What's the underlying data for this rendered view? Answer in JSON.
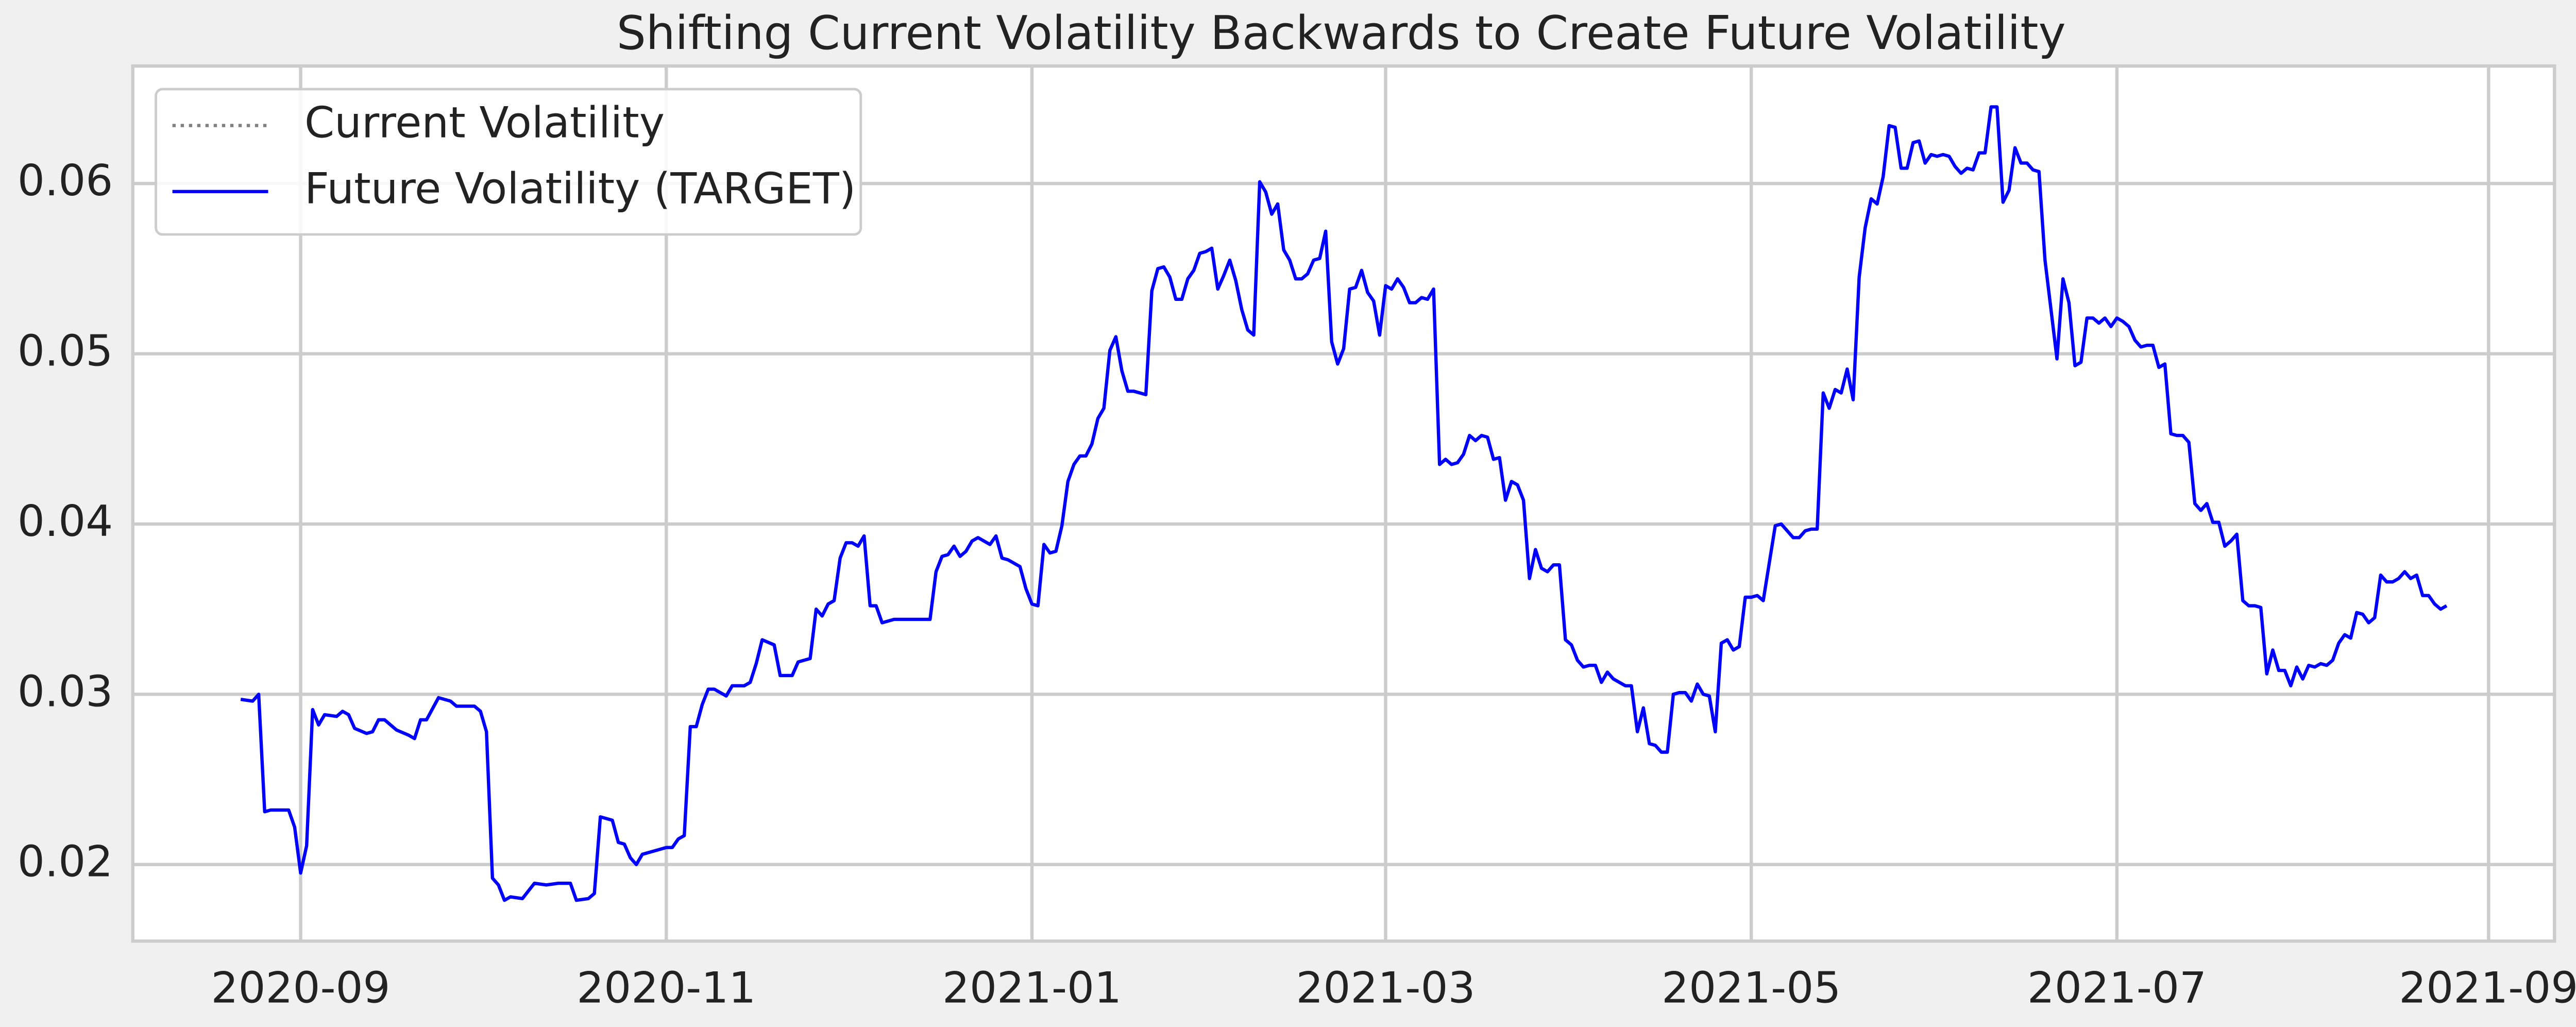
{
  "chart_data": {
    "type": "line",
    "title": "Shifting Current Volatility Backwards to Create Future Volatility",
    "series": [
      {
        "name": "Current Volatility",
        "color": "gray",
        "linestyle": "dotted",
        "x": [],
        "values": []
      },
      {
        "name": "Future Volatility (TARGET)",
        "color": "blue",
        "linestyle": "solid",
        "x": [
          "2020-08-22",
          "2020-08-24",
          "2020-08-25",
          "2020-08-26",
          "2020-08-27",
          "2020-08-30",
          "2020-08-31",
          "2020-09-01",
          "2020-09-02",
          "2020-09-03",
          "2020-09-04",
          "2020-09-05",
          "2020-09-07",
          "2020-09-08",
          "2020-09-09",
          "2020-09-10",
          "2020-09-12",
          "2020-09-13",
          "2020-09-14",
          "2020-09-15",
          "2020-09-17",
          "2020-09-19",
          "2020-09-20",
          "2020-09-21",
          "2020-09-22",
          "2020-09-24",
          "2020-09-26",
          "2020-09-27",
          "2020-09-30",
          "2020-10-01",
          "2020-10-02",
          "2020-10-03",
          "2020-10-04",
          "2020-10-05",
          "2020-10-06",
          "2020-10-08",
          "2020-10-10",
          "2020-10-12",
          "2020-10-14",
          "2020-10-16",
          "2020-10-17",
          "2020-10-19",
          "2020-10-20",
          "2020-10-21",
          "2020-10-23",
          "2020-10-24",
          "2020-10-25",
          "2020-10-26",
          "2020-10-27",
          "2020-10-28",
          "2020-10-30",
          "2020-11-01",
          "2020-11-02",
          "2020-11-03",
          "2020-11-04",
          "2020-11-05",
          "2020-11-06",
          "2020-11-07",
          "2020-11-08",
          "2020-11-09",
          "2020-11-11",
          "2020-11-12",
          "2020-11-14",
          "2020-11-15",
          "2020-11-16",
          "2020-11-17",
          "2020-11-19",
          "2020-11-20",
          "2020-11-22",
          "2020-11-23",
          "2020-11-25",
          "2020-11-26",
          "2020-11-27",
          "2020-11-28",
          "2020-11-29",
          "2020-11-30",
          "2020-12-01",
          "2020-12-02",
          "2020-12-03",
          "2020-12-04",
          "2020-12-05",
          "2020-12-06",
          "2020-12-07",
          "2020-12-09",
          "2020-12-11",
          "2020-12-13",
          "2020-12-15",
          "2020-12-16",
          "2020-12-17",
          "2020-12-18",
          "2020-12-19",
          "2020-12-20",
          "2020-12-21",
          "2020-12-22",
          "2020-12-23",
          "2020-12-25",
          "2020-12-26",
          "2020-12-27",
          "2020-12-28",
          "2020-12-30",
          "2020-12-31",
          "2021-01-01",
          "2021-01-02",
          "2021-01-03",
          "2021-01-04",
          "2021-01-05",
          "2021-01-06",
          "2021-01-07",
          "2021-01-08",
          "2021-01-09",
          "2021-01-10",
          "2021-01-11",
          "2021-01-12",
          "2021-01-13",
          "2021-01-14",
          "2021-01-15",
          "2021-01-16",
          "2021-01-17",
          "2021-01-18",
          "2021-01-20",
          "2021-01-21",
          "2021-01-22",
          "2021-01-23",
          "2021-01-24",
          "2021-01-25",
          "2021-01-26",
          "2021-01-27",
          "2021-01-28",
          "2021-01-29",
          "2021-01-30",
          "2021-01-31",
          "2021-02-01",
          "2021-02-02",
          "2021-02-03",
          "2021-02-04",
          "2021-02-05",
          "2021-02-06",
          "2021-02-07",
          "2021-02-08",
          "2021-02-09",
          "2021-02-10",
          "2021-02-11",
          "2021-02-12",
          "2021-02-13",
          "2021-02-14",
          "2021-02-15",
          "2021-02-16",
          "2021-02-17",
          "2021-02-18",
          "2021-02-19",
          "2021-02-20",
          "2021-02-21",
          "2021-02-22",
          "2021-02-23",
          "2021-02-24",
          "2021-02-25",
          "2021-02-26",
          "2021-02-27",
          "2021-02-28",
          "2021-03-01",
          "2021-03-02",
          "2021-03-03",
          "2021-03-04",
          "2021-03-05",
          "2021-03-06",
          "2021-03-07",
          "2021-03-08",
          "2021-03-09",
          "2021-03-10",
          "2021-03-11",
          "2021-03-12",
          "2021-03-13",
          "2021-03-14",
          "2021-03-15",
          "2021-03-16",
          "2021-03-17",
          "2021-03-18",
          "2021-03-19",
          "2021-03-20",
          "2021-03-21",
          "2021-03-22",
          "2021-03-23",
          "2021-03-24",
          "2021-03-25",
          "2021-03-26",
          "2021-03-27",
          "2021-03-28",
          "2021-03-29",
          "2021-03-30",
          "2021-03-31",
          "2021-04-01",
          "2021-04-02",
          "2021-04-03",
          "2021-04-04",
          "2021-04-05",
          "2021-04-06",
          "2021-04-07",
          "2021-04-08",
          "2021-04-09",
          "2021-04-10",
          "2021-04-11",
          "2021-04-12",
          "2021-04-13",
          "2021-04-14",
          "2021-04-15",
          "2021-04-16",
          "2021-04-17",
          "2021-04-18",
          "2021-04-19",
          "2021-04-20",
          "2021-04-21",
          "2021-04-22",
          "2021-04-23",
          "2021-04-24",
          "2021-04-25",
          "2021-04-26",
          "2021-04-27",
          "2021-04-28",
          "2021-04-29",
          "2021-04-30",
          "2021-05-01",
          "2021-05-02",
          "2021-05-03",
          "2021-05-04",
          "2021-05-05",
          "2021-05-06",
          "2021-05-07",
          "2021-05-08",
          "2021-05-09",
          "2021-05-10",
          "2021-05-11",
          "2021-05-12",
          "2021-05-13",
          "2021-05-14",
          "2021-05-15",
          "2021-05-16",
          "2021-05-17",
          "2021-05-18",
          "2021-05-19",
          "2021-05-20",
          "2021-05-21",
          "2021-05-22",
          "2021-05-23",
          "2021-05-24",
          "2021-05-25",
          "2021-05-26",
          "2021-05-27",
          "2021-05-28",
          "2021-05-29",
          "2021-05-30",
          "2021-05-31",
          "2021-06-01",
          "2021-06-02",
          "2021-06-03",
          "2021-06-04",
          "2021-06-05",
          "2021-06-06",
          "2021-06-07",
          "2021-06-08",
          "2021-06-09",
          "2021-06-10",
          "2021-06-11",
          "2021-06-12",
          "2021-06-13",
          "2021-06-14",
          "2021-06-15",
          "2021-06-16",
          "2021-06-17",
          "2021-06-18",
          "2021-06-19",
          "2021-06-20",
          "2021-06-21",
          "2021-06-22",
          "2021-06-23",
          "2021-06-24",
          "2021-06-25",
          "2021-06-26",
          "2021-06-27",
          "2021-06-28",
          "2021-06-29",
          "2021-06-30",
          "2021-07-01",
          "2021-07-02",
          "2021-07-03",
          "2021-07-04",
          "2021-07-05",
          "2021-07-06",
          "2021-07-07",
          "2021-07-08",
          "2021-07-09",
          "2021-07-10",
          "2021-07-11",
          "2021-07-12",
          "2021-07-13",
          "2021-07-14",
          "2021-07-15",
          "2021-07-16",
          "2021-07-17",
          "2021-07-18",
          "2021-07-19",
          "2021-07-20",
          "2021-07-21",
          "2021-07-22",
          "2021-07-23",
          "2021-07-24",
          "2021-07-25",
          "2021-07-26",
          "2021-07-27",
          "2021-07-28",
          "2021-07-29",
          "2021-07-30",
          "2021-07-31",
          "2021-08-01",
          "2021-08-02",
          "2021-08-03",
          "2021-08-04",
          "2021-08-05",
          "2021-08-06",
          "2021-08-07",
          "2021-08-08",
          "2021-08-09",
          "2021-08-10",
          "2021-08-11",
          "2021-08-12",
          "2021-08-13",
          "2021-08-14",
          "2021-08-15",
          "2021-08-16",
          "2021-08-17",
          "2021-08-18",
          "2021-08-19",
          "2021-08-20",
          "2021-08-21",
          "2021-08-22",
          "2021-08-23",
          "2021-08-24",
          "2021-08-25"
        ],
        "values": [
          0.0297,
          0.0296,
          0.03,
          0.0231,
          0.0232,
          0.0232,
          0.0222,
          0.0195,
          0.0211,
          0.0291,
          0.0282,
          0.0288,
          0.0287,
          0.029,
          0.0288,
          0.028,
          0.0277,
          0.0278,
          0.0285,
          0.0285,
          0.0279,
          0.0276,
          0.0274,
          0.0285,
          0.0285,
          0.0298,
          0.0296,
          0.0293,
          0.0293,
          0.029,
          0.0278,
          0.0192,
          0.0188,
          0.0179,
          0.0181,
          0.018,
          0.0189,
          0.0188,
          0.0189,
          0.0189,
          0.0179,
          0.018,
          0.0183,
          0.0228,
          0.0226,
          0.0213,
          0.0212,
          0.0204,
          0.02,
          0.0206,
          0.0208,
          0.021,
          0.021,
          0.0215,
          0.0217,
          0.0281,
          0.0281,
          0.0294,
          0.0303,
          0.0303,
          0.0299,
          0.0305,
          0.0305,
          0.0307,
          0.0318,
          0.0332,
          0.0329,
          0.0311,
          0.0311,
          0.0319,
          0.0321,
          0.035,
          0.0346,
          0.0353,
          0.0355,
          0.038,
          0.0389,
          0.0389,
          0.0387,
          0.0393,
          0.0352,
          0.0352,
          0.0342,
          0.0344,
          0.0344,
          0.0344,
          0.0344,
          0.0372,
          0.0381,
          0.0382,
          0.0387,
          0.0381,
          0.0384,
          0.039,
          0.0392,
          0.0388,
          0.0393,
          0.038,
          0.0379,
          0.0375,
          0.0362,
          0.0353,
          0.0352,
          0.0388,
          0.0383,
          0.0384,
          0.0399,
          0.0425,
          0.0435,
          0.044,
          0.044,
          0.0447,
          0.0462,
          0.0468,
          0.0502,
          0.051,
          0.049,
          0.0478,
          0.0478,
          0.0476,
          0.0537,
          0.055,
          0.0551,
          0.0545,
          0.0532,
          0.0532,
          0.0544,
          0.0549,
          0.0559,
          0.056,
          0.0562,
          0.0538,
          0.0546,
          0.0555,
          0.0543,
          0.0526,
          0.0514,
          0.0511,
          0.0601,
          0.0595,
          0.0582,
          0.0588,
          0.0561,
          0.0555,
          0.0544,
          0.0544,
          0.0547,
          0.0555,
          0.0556,
          0.0572,
          0.0507,
          0.0494,
          0.0503,
          0.0538,
          0.0539,
          0.0549,
          0.0536,
          0.0531,
          0.0511,
          0.054,
          0.0538,
          0.0544,
          0.0539,
          0.053,
          0.053,
          0.0533,
          0.0532,
          0.0538,
          0.0435,
          0.0438,
          0.0435,
          0.0436,
          0.0441,
          0.0452,
          0.0449,
          0.0452,
          0.0451,
          0.0438,
          0.0439,
          0.0414,
          0.0425,
          0.0423,
          0.0414,
          0.0368,
          0.0385,
          0.0374,
          0.0372,
          0.0376,
          0.0376,
          0.0332,
          0.0329,
          0.032,
          0.0316,
          0.0317,
          0.0317,
          0.0307,
          0.0313,
          0.0309,
          0.0307,
          0.0305,
          0.0305,
          0.0278,
          0.0292,
          0.0271,
          0.027,
          0.0266,
          0.0266,
          0.03,
          0.0301,
          0.0301,
          0.0296,
          0.0306,
          0.03,
          0.0299,
          0.0278,
          0.033,
          0.0332,
          0.0326,
          0.0328,
          0.0357,
          0.0357,
          0.0358,
          0.0355,
          0.0377,
          0.0399,
          0.04,
          0.0396,
          0.0392,
          0.0392,
          0.0396,
          0.0397,
          0.0397,
          0.0477,
          0.0468,
          0.0479,
          0.0477,
          0.0491,
          0.0473,
          0.0545,
          0.0574,
          0.0591,
          0.0588,
          0.0604,
          0.0634,
          0.0633,
          0.0609,
          0.0609,
          0.0624,
          0.0625,
          0.0612,
          0.0617,
          0.0616,
          0.0617,
          0.0616,
          0.061,
          0.0606,
          0.0609,
          0.0608,
          0.0618,
          0.0618,
          0.0645,
          0.0645,
          0.0589,
          0.0596,
          0.0621,
          0.0612,
          0.0612,
          0.0608,
          0.0607,
          0.0555,
          0.0526,
          0.0497,
          0.0544,
          0.053,
          0.0493,
          0.0495,
          0.0521,
          0.0521,
          0.0518,
          0.0521,
          0.0516,
          0.0521,
          0.0519,
          0.0516,
          0.0508,
          0.0504,
          0.0505,
          0.0505,
          0.0492,
          0.0494,
          0.0453,
          0.0452,
          0.0452,
          0.0448,
          0.0412,
          0.0408,
          0.0412,
          0.0401,
          0.0401,
          0.0387,
          0.039,
          0.0394,
          0.0355,
          0.0352,
          0.0352,
          0.0351,
          0.0312,
          0.0326,
          0.0314,
          0.0314,
          0.0305,
          0.0316,
          0.0309,
          0.0317,
          0.0316,
          0.0318,
          0.0317,
          0.032,
          0.033,
          0.0335,
          0.0333,
          0.0348,
          0.0347,
          0.0342,
          0.0345,
          0.037,
          0.0366,
          0.0366,
          0.0368,
          0.0372,
          0.0368,
          0.037,
          0.0358,
          0.0358,
          0.0353,
          0.035,
          0.0352
        ]
      }
    ],
    "xlim": [
      "2020-08-04",
      "2021-09-12"
    ],
    "xticks": [
      {
        "value": "2020-09-01",
        "label": "2020-09"
      },
      {
        "value": "2020-11-01",
        "label": "2020-11"
      },
      {
        "value": "2021-01-01",
        "label": "2021-01"
      },
      {
        "value": "2021-03-01",
        "label": "2021-03"
      },
      {
        "value": "2021-05-01",
        "label": "2021-05"
      },
      {
        "value": "2021-07-01",
        "label": "2021-07"
      },
      {
        "value": "2021-09-01",
        "label": "2021-09"
      }
    ],
    "ylim": [
      0.0155,
      0.0669
    ],
    "yticks": [
      0.02,
      0.03,
      0.04,
      0.05,
      0.06
    ],
    "grid": true,
    "legend": "upper left"
  }
}
